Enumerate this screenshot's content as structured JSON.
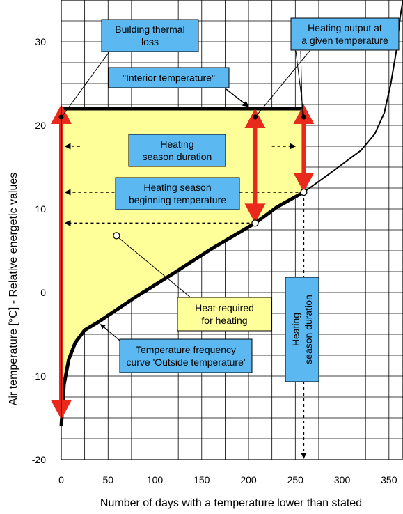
{
  "chart_data": {
    "type": "line",
    "title": "",
    "xlabel": "Number of days with a temperature lower than stated",
    "ylabel": "Air temperature [°C] - Relative energetic values",
    "xlim": [
      0,
      365
    ],
    "ylim": [
      -20,
      35
    ],
    "x_ticks": [
      0,
      50,
      100,
      150,
      200,
      250,
      300,
      350
    ],
    "y_ticks": [
      -20,
      -10,
      0,
      10,
      20,
      30
    ],
    "grid": true,
    "series": [
      {
        "name": "Temperature frequency curve 'Outside temperature'",
        "x": [
          0,
          3,
          8,
          15,
          25,
          40,
          80,
          120,
          160,
          207,
          230,
          259,
          290,
          320,
          335,
          345,
          352,
          358,
          362,
          365
        ],
        "y": [
          -16,
          -11,
          -8,
          -6,
          -4.5,
          -3.5,
          -0.5,
          2.3,
          5.2,
          8.3,
          10.2,
          12,
          14.5,
          17,
          19,
          21.5,
          25,
          29,
          33,
          35
        ]
      }
    ],
    "interior_temperature": 22,
    "interior_line_x": [
      0,
      259
    ],
    "heating_season_end_day": 259,
    "heating_season_beginning_temperature": 12,
    "given_temperature_day": 207,
    "given_temperature_value": 8.3,
    "heat_required_marker": {
      "x": 59,
      "y": 6.8
    },
    "season_duration_arrow_y": 17.5,
    "reference_arrow_y": [
      12,
      8.3
    ],
    "annotations": [
      {
        "id": "building_thermal_loss",
        "text": [
          "Building thermal",
          "loss"
        ]
      },
      {
        "id": "heating_output",
        "text": [
          "Heating output at",
          "a given temperature"
        ]
      },
      {
        "id": "interior_temperature",
        "text": [
          "\"Interior temperature\""
        ]
      },
      {
        "id": "heating_season_duration",
        "text": [
          "Heating",
          "season duration"
        ]
      },
      {
        "id": "heating_season_beginning",
        "text": [
          "Heating season",
          "beginning temperature"
        ]
      },
      {
        "id": "heat_required",
        "text": [
          "Heat required",
          "for heating"
        ]
      },
      {
        "id": "temperature_frequency_curve",
        "text": [
          "Temperature frequency",
          "curve 'Outside temperature'"
        ]
      },
      {
        "id": "heating_season_duration_vertical",
        "text": [
          "Heating",
          "season duration"
        ]
      }
    ],
    "colors": {
      "heat_area": "#ffff99",
      "label_box": "#5bb8f0",
      "arrow_red": "#e8291c",
      "curve": "#000000"
    }
  }
}
